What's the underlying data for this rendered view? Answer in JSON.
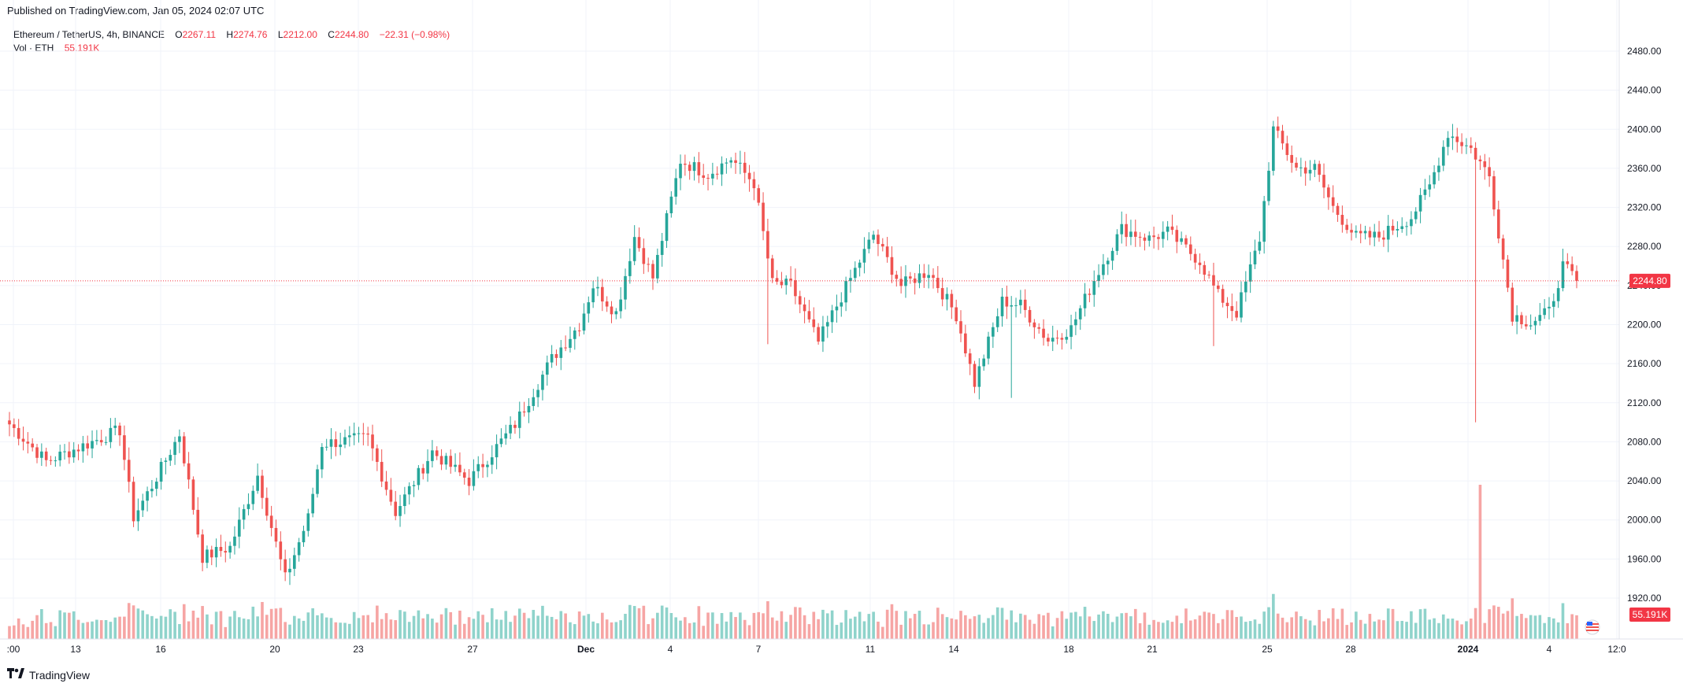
{
  "header": {
    "published": "Published on TradingView.com, Jan 05, 2024 02:07 UTC"
  },
  "legend": {
    "symbol": "Ethereum / TetherUS, 4h, BINANCE",
    "o_label": "O",
    "o_value": "2267.11",
    "h_label": "H",
    "h_value": "2274.76",
    "l_label": "L",
    "l_value": "2212.00",
    "c_label": "C",
    "c_value": "2244.80",
    "change": "−22.31 (−0.98%)",
    "vol_label": "Vol · ETH",
    "vol_value": "55.191K"
  },
  "footer": {
    "brand": "TradingView"
  },
  "colors": {
    "up": "#26a69a",
    "down": "#ef5350",
    "up_vol": "#8fd3cb",
    "down_vol": "#f6a5a4",
    "grid": "#f0f3fa",
    "price_tag": "#f23645"
  },
  "chart_data": {
    "type": "candlestick",
    "symbol": "ETH/USDT",
    "interval": "4h",
    "last_price": "2244.80",
    "last_volume": "55.191K",
    "y_axis_ticks": [
      "2480.00",
      "2440.00",
      "2400.00",
      "2360.00",
      "2320.00",
      "2280.00",
      "2240.00",
      "2200.00",
      "2160.00",
      "2120.00",
      "2080.00",
      "2040.00",
      "2000.00",
      "1960.00",
      "1920.00"
    ],
    "ylim": [
      1898,
      2495
    ],
    "x_axis_ticks": [
      ":00",
      "13",
      "16",
      "20",
      "23",
      "27",
      "Dec",
      "4",
      "7",
      "11",
      "14",
      "18",
      "21",
      "25",
      "28",
      "2024",
      "4",
      "12:0"
    ],
    "anchors": [
      [
        0,
        2098
      ],
      [
        8,
        2060
      ],
      [
        18,
        2080
      ],
      [
        24,
        2092
      ],
      [
        27,
        2003
      ],
      [
        31,
        2035
      ],
      [
        37,
        2088
      ],
      [
        42,
        1962
      ],
      [
        48,
        1972
      ],
      [
        54,
        2046
      ],
      [
        60,
        1940
      ],
      [
        65,
        2002
      ],
      [
        68,
        2078
      ],
      [
        78,
        2084
      ],
      [
        84,
        2008
      ],
      [
        92,
        2070
      ],
      [
        100,
        2040
      ],
      [
        110,
        2098
      ],
      [
        118,
        2165
      ],
      [
        124,
        2200
      ],
      [
        127,
        2240
      ],
      [
        132,
        2212
      ],
      [
        136,
        2290
      ],
      [
        140,
        2248
      ],
      [
        146,
        2368
      ],
      [
        152,
        2354
      ],
      [
        157,
        2370
      ],
      [
        162,
        2345
      ],
      [
        166,
        2242
      ],
      [
        170,
        2240
      ],
      [
        176,
        2182
      ],
      [
        182,
        2238
      ],
      [
        188,
        2292
      ],
      [
        194,
        2240
      ],
      [
        200,
        2255
      ],
      [
        206,
        2210
      ],
      [
        210,
        2140
      ],
      [
        216,
        2224
      ],
      [
        220,
        2220
      ],
      [
        226,
        2184
      ],
      [
        231,
        2196
      ],
      [
        236,
        2246
      ],
      [
        242,
        2298
      ],
      [
        248,
        2288
      ],
      [
        252,
        2295
      ],
      [
        259,
        2265
      ],
      [
        263,
        2230
      ],
      [
        267,
        2212
      ],
      [
        272,
        2288
      ],
      [
        275,
        2400
      ],
      [
        280,
        2360
      ],
      [
        284,
        2360
      ],
      [
        288,
        2320
      ],
      [
        293,
        2290
      ],
      [
        298,
        2290
      ],
      [
        305,
        2310
      ],
      [
        309,
        2342
      ],
      [
        313,
        2396
      ],
      [
        318,
        2380
      ],
      [
        322,
        2352
      ],
      [
        327,
        2210
      ],
      [
        331,
        2202
      ],
      [
        335,
        2213
      ],
      [
        338,
        2260
      ],
      [
        341,
        2245
      ]
    ],
    "spikes": [
      [
        165,
        2180
      ],
      [
        262,
        2178
      ],
      [
        319,
        2100
      ],
      [
        218,
        2125
      ]
    ],
    "volume_spike_index": 320,
    "total_candles": 342
  }
}
